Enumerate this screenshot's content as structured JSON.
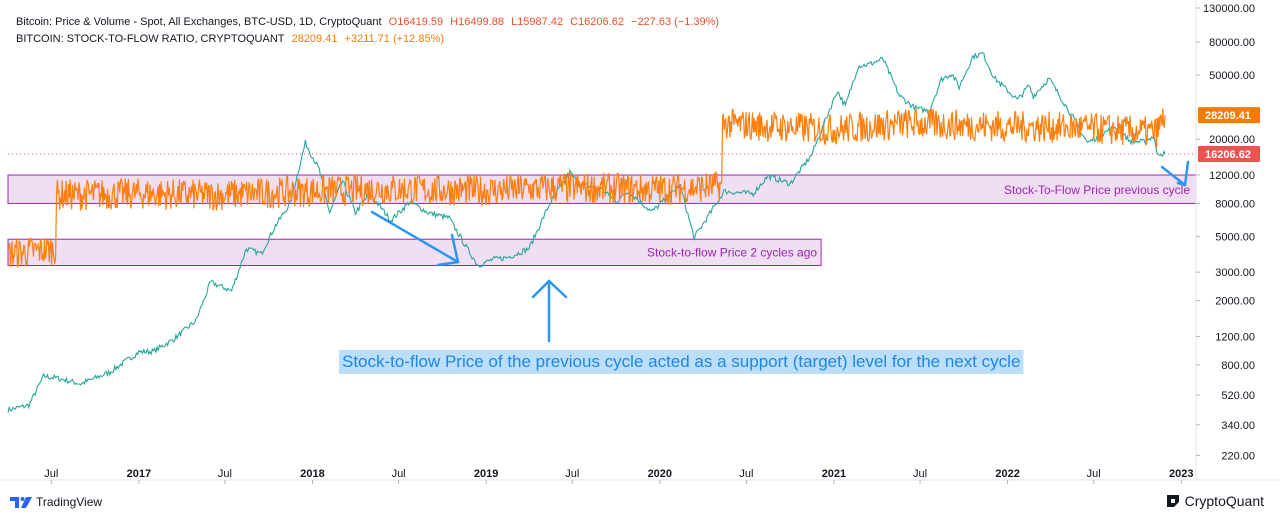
{
  "legend": {
    "line1_label": "Bitcoin: Price & Volume - Spot, All Exchanges, BTC-USD, 1D, CryptoQuant",
    "open": "O16419.59",
    "high": "H16499.88",
    "low": "L15987.42",
    "close": "C16206.62",
    "change": "−227.63 (−1.39%)",
    "line2_label": "BITCOIN: STOCK-TO-FLOW RATIO, CRYPTOQUANT",
    "s2f_value": "28209.41",
    "s2f_change": "+3211.71 (+12.85%)"
  },
  "footer": {
    "left_brand": "TradingView",
    "right_brand": "CryptoQuant"
  },
  "chart_data": {
    "type": "line",
    "y_scale": "log",
    "ylim": [
      200,
      130000
    ],
    "x_range": [
      "2016-04-01",
      "2023-02-01"
    ],
    "y_ticks": [
      "130000.00",
      "80000.00",
      "50000.00",
      "20000.00",
      "12000.00",
      "8000.00",
      "5000.00",
      "3000.00",
      "2000.00",
      "1200.00",
      "800.00",
      "520.00",
      "340.00",
      "220.00"
    ],
    "x_ticks": [
      "Jul",
      "2017",
      "Jul",
      "2018",
      "Jul",
      "2019",
      "Jul",
      "2020",
      "Jul",
      "2021",
      "Jul",
      "2022",
      "Jul",
      "2023"
    ],
    "x_tick_dates": [
      "2016-07-01",
      "2017-01-01",
      "2017-07-01",
      "2018-01-01",
      "2018-07-01",
      "2019-01-01",
      "2019-07-01",
      "2020-01-01",
      "2020-07-01",
      "2021-01-01",
      "2021-07-01",
      "2022-01-01",
      "2022-07-01",
      "2023-01-01"
    ],
    "last_price_label": "16206.62",
    "last_s2f_label": "28209.41",
    "price_color": "#26a69a",
    "price_down_color": "#ef5350",
    "s2f_color": "#ff7f0e",
    "series": [
      {
        "points": [
          [
            "2016-04-01",
            420
          ],
          [
            "2016-05-15",
            450
          ],
          [
            "2016-06-15",
            680
          ],
          [
            "2016-07-15",
            660
          ],
          [
            "2016-09-01",
            610
          ],
          [
            "2016-11-01",
            720
          ],
          [
            "2017-01-01",
            960
          ],
          [
            "2017-02-01",
            970
          ],
          [
            "2017-03-15",
            1150
          ],
          [
            "2017-05-01",
            1500
          ],
          [
            "2017-06-01",
            2600
          ],
          [
            "2017-07-15",
            2300
          ],
          [
            "2017-08-15",
            4200
          ],
          [
            "2017-09-15",
            3900
          ],
          [
            "2017-10-15",
            5800
          ],
          [
            "2017-11-15",
            8000
          ],
          [
            "2017-12-17",
            19000
          ],
          [
            "2018-01-15",
            13000
          ],
          [
            "2018-02-06",
            7000
          ],
          [
            "2018-03-05",
            11000
          ],
          [
            "2018-04-01",
            7000
          ],
          [
            "2018-05-01",
            9200
          ],
          [
            "2018-06-15",
            6300
          ],
          [
            "2018-07-25",
            8200
          ],
          [
            "2018-09-01",
            7000
          ],
          [
            "2018-10-15",
            6500
          ],
          [
            "2018-11-20",
            4300
          ],
          [
            "2018-12-15",
            3300
          ],
          [
            "2019-01-15",
            3600
          ],
          [
            "2019-02-15",
            3700
          ],
          [
            "2019-04-01",
            4200
          ],
          [
            "2019-05-15",
            8000
          ],
          [
            "2019-06-26",
            12500
          ],
          [
            "2019-07-15",
            10500
          ],
          [
            "2019-09-01",
            9800
          ],
          [
            "2019-10-01",
            8200
          ],
          [
            "2019-10-27",
            9500
          ],
          [
            "2019-12-15",
            7100
          ],
          [
            "2020-02-13",
            10300
          ],
          [
            "2020-03-13",
            4900
          ],
          [
            "2020-04-15",
            6900
          ],
          [
            "2020-05-15",
            9500
          ],
          [
            "2020-07-15",
            9200
          ],
          [
            "2020-08-15",
            11800
          ],
          [
            "2020-10-01",
            10600
          ],
          [
            "2020-11-15",
            16000
          ],
          [
            "2021-01-08",
            40000
          ],
          [
            "2021-01-25",
            32000
          ],
          [
            "2021-02-21",
            57000
          ],
          [
            "2021-03-15",
            58000
          ],
          [
            "2021-04-14",
            63000
          ],
          [
            "2021-05-19",
            37000
          ],
          [
            "2021-06-22",
            31000
          ],
          [
            "2021-07-20",
            30000
          ],
          [
            "2021-08-15",
            47000
          ],
          [
            "2021-09-06",
            51000
          ],
          [
            "2021-09-21",
            42000
          ],
          [
            "2021-10-20",
            65000
          ],
          [
            "2021-11-10",
            68000
          ],
          [
            "2021-12-04",
            48000
          ],
          [
            "2022-01-22",
            35000
          ],
          [
            "2022-02-15",
            43000
          ],
          [
            "2022-02-24",
            37000
          ],
          [
            "2022-03-29",
            47500
          ],
          [
            "2022-05-10",
            30000
          ],
          [
            "2022-06-18",
            19000
          ],
          [
            "2022-08-15",
            24000
          ],
          [
            "2022-09-15",
            19500
          ],
          [
            "2022-10-15",
            19200
          ],
          [
            "2022-11-05",
            21000
          ],
          [
            "2022-11-10",
            16500
          ],
          [
            "2022-11-28",
            16206.62
          ]
        ]
      },
      {
        "points": [
          [
            "2016-04-01",
            3900
          ],
          [
            "2016-06-15",
            4100
          ],
          [
            "2016-07-10",
            4200
          ],
          [
            "2016-07-12",
            9000
          ],
          [
            "2017-01-01",
            9200
          ],
          [
            "2017-06-01",
            9000
          ],
          [
            "2017-12-15",
            9500
          ],
          [
            "2018-06-01",
            9800
          ],
          [
            "2019-01-01",
            9600
          ],
          [
            "2019-06-01",
            10000
          ],
          [
            "2020-01-01",
            9800
          ],
          [
            "2020-05-10",
            10200
          ],
          [
            "2020-05-12",
            25000
          ],
          [
            "2020-08-15",
            24000
          ],
          [
            "2021-01-01",
            23000
          ],
          [
            "2021-06-01",
            25000
          ],
          [
            "2022-01-01",
            24000
          ],
          [
            "2022-06-01",
            23500
          ],
          [
            "2022-11-10",
            22000
          ],
          [
            "2022-11-28",
            28209.41
          ]
        ]
      }
    ]
  },
  "annotations": {
    "band1_label": "Stock-To-Flow Price previous cycle",
    "band1_range": [
      8000,
      12000
    ],
    "band1_x": [
      "2016-04-01",
      "2023-02-01"
    ],
    "band2_label": "Stock-to-flow Price 2 cycles ago",
    "band2_range": [
      3300,
      4800
    ],
    "band2_x": [
      "2016-04-01",
      "2020-12-05"
    ],
    "main_text": "Stock-to-flow Price of the previous cycle acted as a support (target) level for the next cycle",
    "band_color": "#9c27b0",
    "band_fill": "rgba(186,104,200,0.22)",
    "arrow_color": "#2f96f0",
    "text_bg": "#bbdefb",
    "text_color": "#1e88e5"
  }
}
